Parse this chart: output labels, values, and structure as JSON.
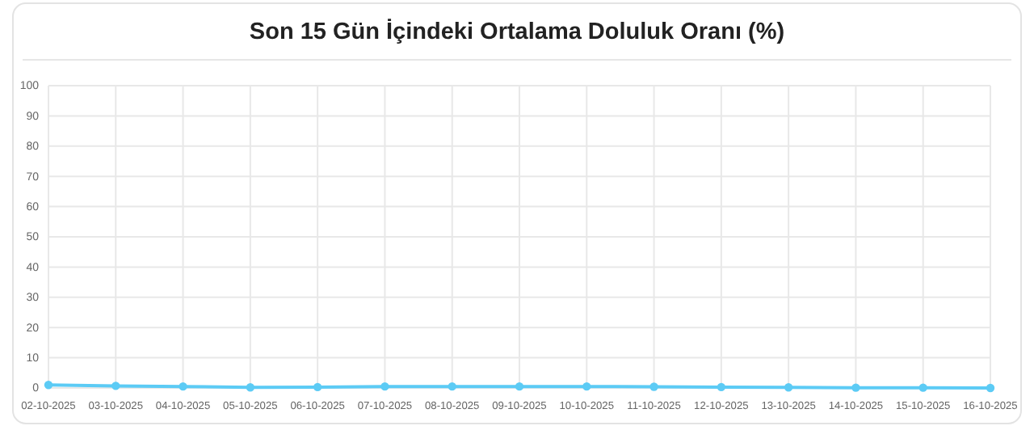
{
  "chart_data": {
    "type": "line",
    "title": "Son 15 Gün İçindeki Ortalama Doluluk Oranı (%)",
    "categories": [
      "02-10-2025",
      "03-10-2025",
      "04-10-2025",
      "05-10-2025",
      "06-10-2025",
      "07-10-2025",
      "08-10-2025",
      "09-10-2025",
      "10-10-2025",
      "11-10-2025",
      "12-10-2025",
      "13-10-2025",
      "14-10-2025",
      "15-10-2025",
      "16-10-2025"
    ],
    "series": [
      {
        "color": "#5ccbf5",
        "values": [
          1.0,
          0.7,
          0.5,
          0.2,
          0.3,
          0.5,
          0.5,
          0.5,
          0.5,
          0.4,
          0.3,
          0.2,
          0.1,
          0.1,
          0
        ]
      }
    ],
    "ylim": [
      0,
      100
    ],
    "yticks": [
      0,
      10,
      20,
      30,
      40,
      50,
      60,
      70,
      80,
      90,
      100
    ],
    "grid": true,
    "marker": "circle"
  }
}
